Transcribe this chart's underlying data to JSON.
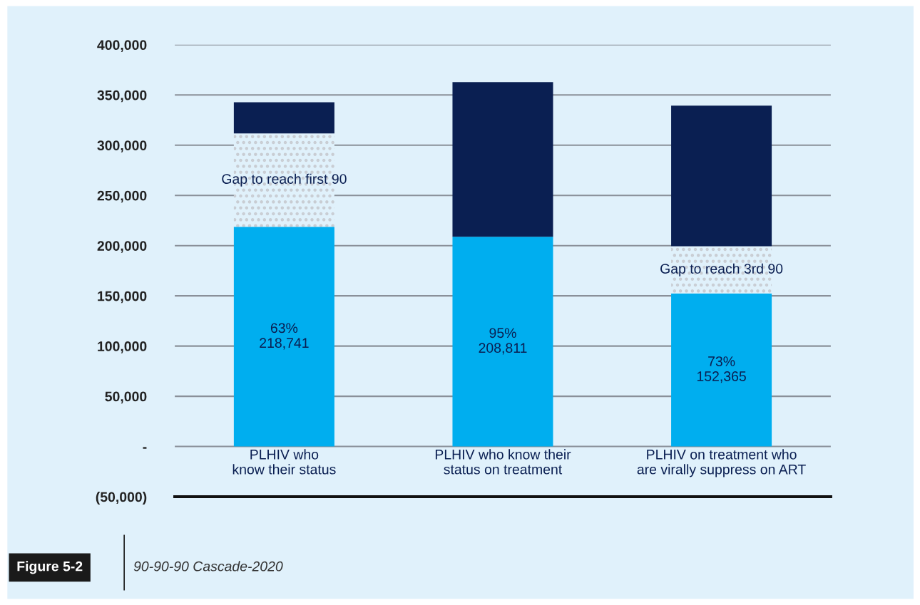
{
  "chart_data": {
    "type": "bar",
    "stacked": true,
    "title": "90-90-90 Cascade-2020",
    "categories": [
      "PLHIV who\nknow their status",
      "PLHIV who know their\nstatus on treatment",
      "PLHIV on treatment who\nare virally suppress on ART"
    ],
    "series": [
      {
        "color": "#00aeef",
        "values": [
          218741,
          208811,
          152365
        ],
        "value_labels": [
          "63%\n218,741",
          "95%\n208,811",
          "73%\n152,365"
        ]
      },
      {
        "color": "#c8ccd2",
        "values": [
          93000,
          null,
          47000
        ]
      },
      {
        "color": "#0a1f52",
        "values": [
          31000,
          154000,
          140000
        ]
      }
    ],
    "ylim": [
      -50000,
      400000
    ],
    "yticks": [
      {
        "value": -50000,
        "label": "(50,000)"
      },
      {
        "value": 0,
        "label": "-"
      },
      {
        "value": 50000,
        "label": "50,000"
      },
      {
        "value": 100000,
        "label": "100,000"
      },
      {
        "value": 150000,
        "label": "150,000"
      },
      {
        "value": 200000,
        "label": "200,000"
      },
      {
        "value": 250000,
        "label": "250,000"
      },
      {
        "value": 300000,
        "label": "300,000"
      },
      {
        "value": 350000,
        "label": "350,000"
      },
      {
        "value": 400000,
        "label": "400,000"
      }
    ],
    "grid": "y",
    "legend": false,
    "annotations": [
      "Figure 5-2",
      "Gap to reach first 90",
      "Gap to reach 3rd 90"
    ]
  }
}
